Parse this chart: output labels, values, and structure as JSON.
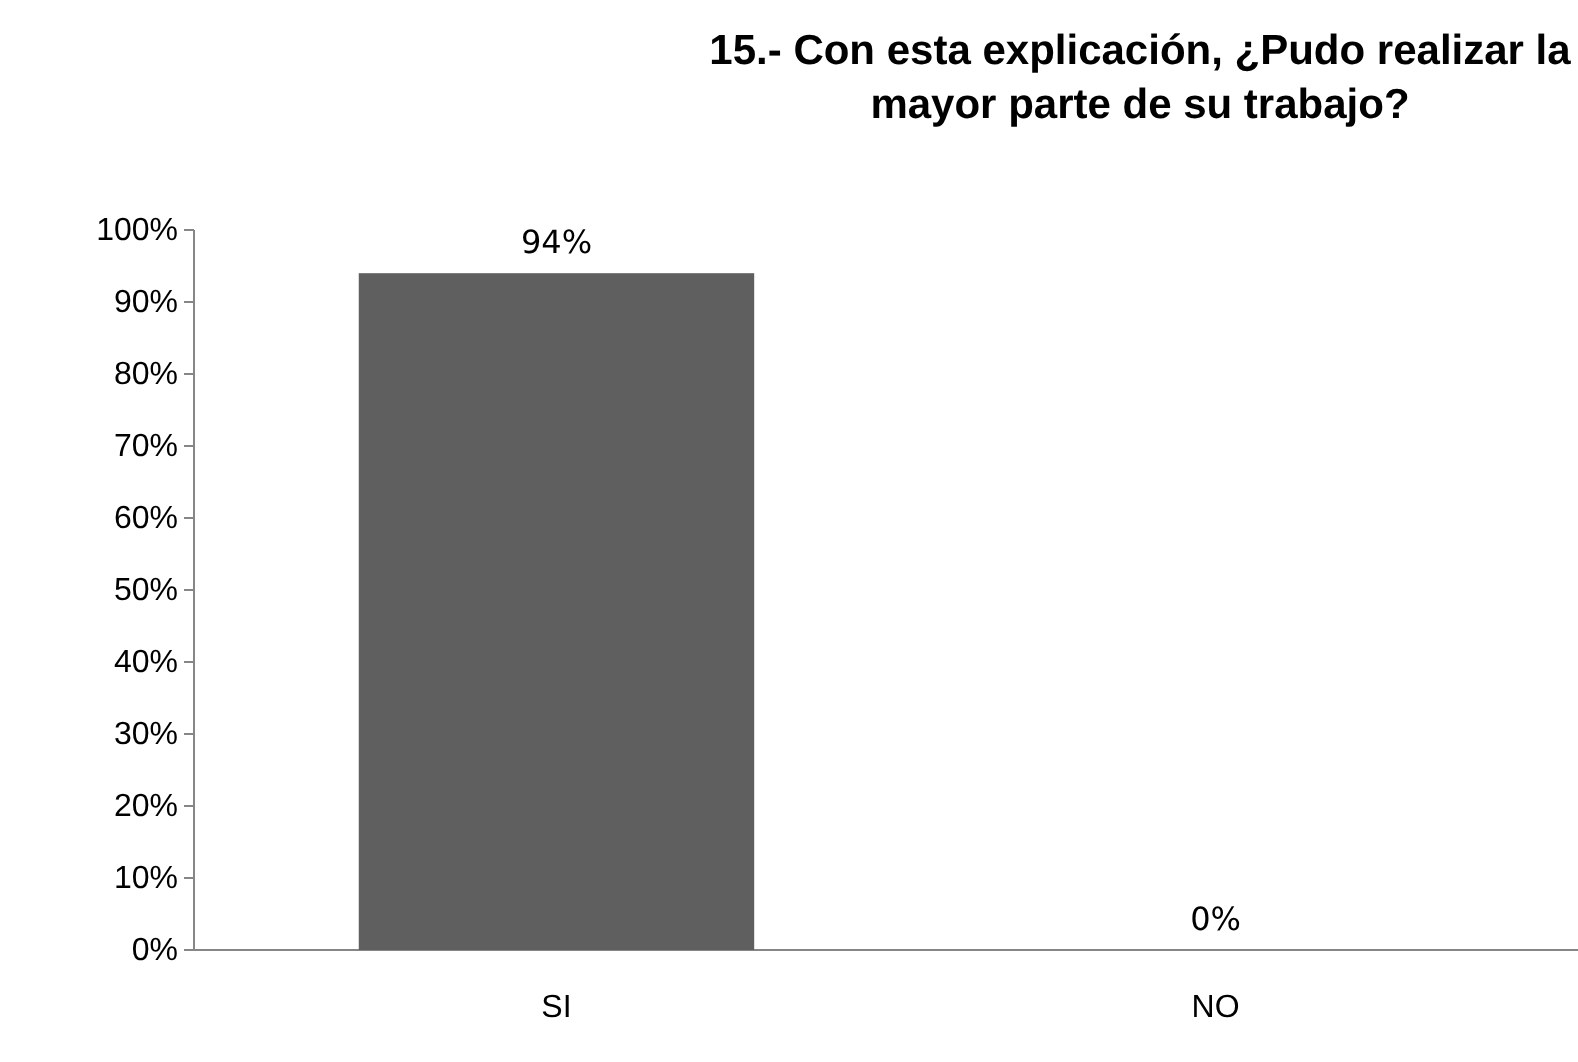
{
  "chart_data": {
    "type": "bar",
    "title": "15.- Con esta explicación, ¿Pudo realizar la mayor parte de su trabajo?",
    "categories": [
      "SI",
      "NO"
    ],
    "values": [
      94,
      0
    ],
    "value_labels": [
      "94%",
      "0%"
    ],
    "color": "#5f5f5f",
    "ylim": [
      0,
      100
    ],
    "yticks": [
      {
        "value": 0,
        "label": "0%"
      },
      {
        "value": 10,
        "label": "10%"
      },
      {
        "value": 20,
        "label": "20%"
      },
      {
        "value": 30,
        "label": "30%"
      },
      {
        "value": 40,
        "label": "40%"
      },
      {
        "value": 50,
        "label": "50%"
      },
      {
        "value": 60,
        "label": "60%"
      },
      {
        "value": 70,
        "label": "70%"
      },
      {
        "value": 80,
        "label": "80%"
      },
      {
        "value": 90,
        "label": "90%"
      },
      {
        "value": 100,
        "label": "100%"
      }
    ],
    "grid": false
  }
}
